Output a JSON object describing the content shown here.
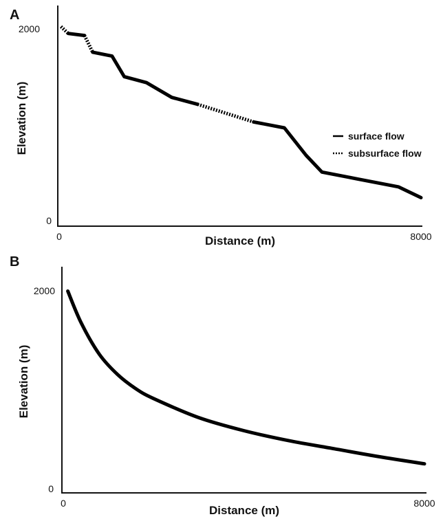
{
  "chart_data": [
    {
      "panel": "A",
      "type": "line",
      "xlabel": "Distance (m)",
      "ylabel": "Elevation (m)",
      "xlim": [
        0,
        8000
      ],
      "ylim": [
        0,
        2000
      ],
      "x_ticks": [
        "0",
        "8000"
      ],
      "y_ticks": [
        "0",
        "2000"
      ],
      "legend": {
        "placement": "right",
        "entries": [
          {
            "label": "surface flow",
            "style": "solid"
          },
          {
            "label": "subsurface flow",
            "style": "dotted"
          }
        ]
      },
      "segments": [
        {
          "style": "dotted",
          "points": [
            [
              40,
              2030
            ],
            [
              200,
              1960
            ]
          ]
        },
        {
          "style": "solid",
          "points": [
            [
              200,
              1960
            ],
            [
              560,
              1940
            ]
          ]
        },
        {
          "style": "dotted",
          "points": [
            [
              560,
              1940
            ],
            [
              740,
              1770
            ]
          ]
        },
        {
          "style": "solid",
          "points": [
            [
              740,
              1770
            ],
            [
              1170,
              1730
            ],
            [
              1440,
              1520
            ],
            [
              1930,
              1460
            ],
            [
              2490,
              1310
            ],
            [
              3060,
              1240
            ]
          ]
        },
        {
          "style": "dotted",
          "points": [
            [
              3060,
              1240
            ],
            [
              4300,
              1060
            ]
          ]
        },
        {
          "style": "solid",
          "points": [
            [
              4300,
              1060
            ],
            [
              4980,
              1000
            ],
            [
              5460,
              720
            ],
            [
              5810,
              550
            ],
            [
              6600,
              480
            ],
            [
              7500,
              400
            ],
            [
              8000,
              290
            ]
          ]
        }
      ]
    },
    {
      "panel": "B",
      "type": "line",
      "xlabel": "Distance (m)",
      "ylabel": "Elevation (m)",
      "xlim": [
        0,
        8000
      ],
      "ylim": [
        0,
        2000
      ],
      "x_ticks": [
        "0",
        "8000"
      ],
      "y_ticks": [
        "0",
        "2000"
      ],
      "series": [
        {
          "style": "solid",
          "points": [
            [
              100,
              2010
            ],
            [
              400,
              1690
            ],
            [
              800,
              1380
            ],
            [
              1200,
              1180
            ],
            [
              1600,
              1040
            ],
            [
              2000,
              940
            ],
            [
              3000,
              750
            ],
            [
              4000,
              620
            ],
            [
              5000,
              520
            ],
            [
              6000,
              440
            ],
            [
              7000,
              360
            ],
            [
              8000,
              290
            ]
          ]
        }
      ]
    }
  ]
}
